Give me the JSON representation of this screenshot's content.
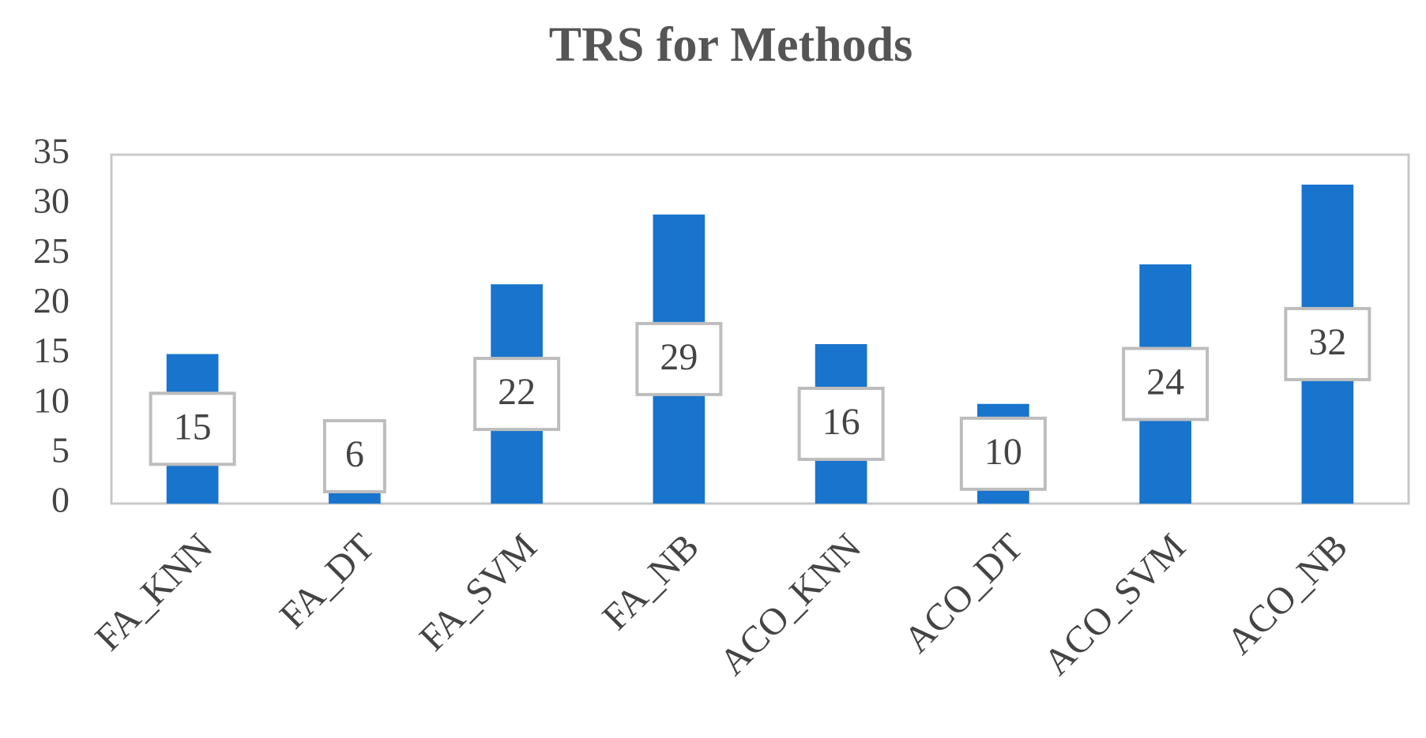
{
  "chart_data": {
    "type": "bar",
    "title": "TRS for Methods",
    "categories": [
      "FA_KNN",
      "FA_DT",
      "FA_SVM",
      "FA_NB",
      "ACO_KNN",
      "ACO_DT",
      "ACO_SVM",
      "ACO_NB"
    ],
    "values": [
      15,
      6,
      22,
      29,
      16,
      10,
      24,
      32
    ],
    "color": "#1874cd",
    "ylim": [
      0,
      35
    ],
    "yticks": [
      0,
      5,
      10,
      15,
      20,
      25,
      30,
      35
    ],
    "grid": false
  }
}
